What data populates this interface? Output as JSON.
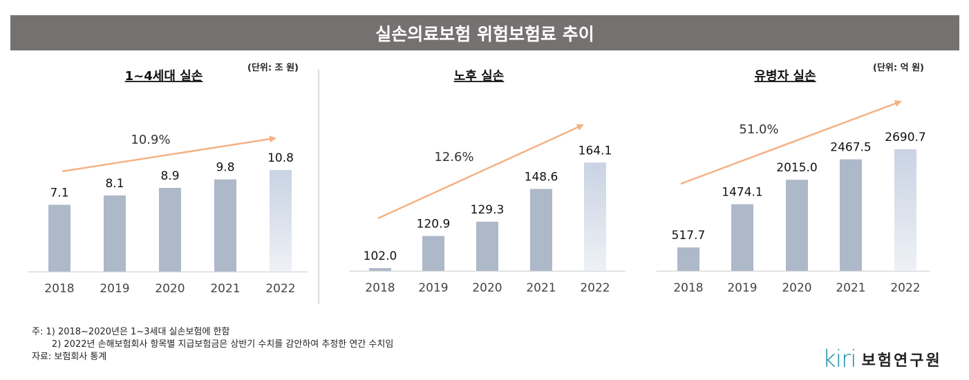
{
  "title": "실손의료보험 위험보험료 추이",
  "colors": {
    "title_bg": "#767171",
    "bar": "#adb8c9",
    "bar_last_top": "#c9d3e3",
    "bar_last_bottom": "#eef1f6",
    "arrow": "#f4b183",
    "logo": "#1a8fa0"
  },
  "chart_data": [
    {
      "type": "bar",
      "title": "1~4세대 실손",
      "unit": "(단위: 조 원)",
      "categories": [
        "2018",
        "2019",
        "2020",
        "2021",
        "2022"
      ],
      "values": [
        "7.1",
        "8.1",
        "8.9",
        "9.8",
        "10.8"
      ],
      "growth_annotation": "10.9%",
      "ylim": [
        0,
        14.7
      ]
    },
    {
      "type": "bar",
      "title": "노후 실손",
      "unit": "",
      "categories": [
        "2018",
        "2019",
        "2020",
        "2021",
        "2022"
      ],
      "values": [
        "102.0",
        "120.9",
        "129.3",
        "148.6",
        "164.1"
      ],
      "growth_annotation": "12.6%",
      "ylim": [
        100.4,
        181.7
      ]
    },
    {
      "type": "bar",
      "title": "유병자 실손",
      "unit": "(단위: 억 원)",
      "categories": [
        "2018",
        "2019",
        "2020",
        "2021",
        "2022"
      ],
      "values": [
        "517.7",
        "1474.1",
        "2015.0",
        "2467.5",
        "2690.7"
      ],
      "growth_annotation": "51.0%",
      "ylim": [
        0,
        3058
      ]
    }
  ],
  "notes": {
    "line1": "주: 1) 2018~2020년은 1~3세대 실손보험에 한함",
    "line2": "       2) 2022년 손해보험회사 항목별 지급보험금은 상반기 수치를 감안하여 추정한 연간 수치임",
    "source": "자료: 보험회사 통계"
  },
  "logo": {
    "mark": "kiri",
    "name": "보험연구원"
  }
}
